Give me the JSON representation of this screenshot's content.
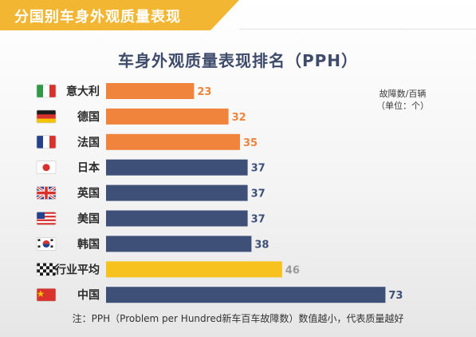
{
  "header": {
    "section_title": "分国别车身外观质量表现"
  },
  "chart_data": {
    "type": "bar",
    "orientation": "horizontal",
    "title": "车身外观质量表现排名（PPH）",
    "unit_note": [
      "故障数/百辆",
      "（单位：个）"
    ],
    "categories": [
      "意大利",
      "德国",
      "法国",
      "日本",
      "英国",
      "美国",
      "韩国",
      "行业平均",
      "中国"
    ],
    "flags": [
      "italy-flag-icon",
      "germany-flag-icon",
      "france-flag-icon",
      "japan-flag-icon",
      "uk-flag-icon",
      "usa-flag-icon",
      "korea-flag-icon",
      "checkered-flag-icon",
      "china-flag-icon"
    ],
    "values": [
      23,
      32,
      35,
      37,
      37,
      37,
      38,
      46,
      73
    ],
    "bar_colors": [
      "#f0843c",
      "#f0843c",
      "#f0843c",
      "#3f5078",
      "#3f5078",
      "#3f5078",
      "#3f5078",
      "#f8c21e",
      "#3f5078"
    ],
    "label_colors": [
      "#f0843c",
      "#f0843c",
      "#f0843c",
      "#3f5078",
      "#3f5078",
      "#3f5078",
      "#3f5078",
      "#9a9a9a",
      "#3f5078"
    ],
    "xlim": [
      0,
      80
    ],
    "grid": false,
    "legend": "none"
  },
  "footnote": "注：PPH（Problem per Hundred新车百车故障数）数值越小，代表质量越好"
}
